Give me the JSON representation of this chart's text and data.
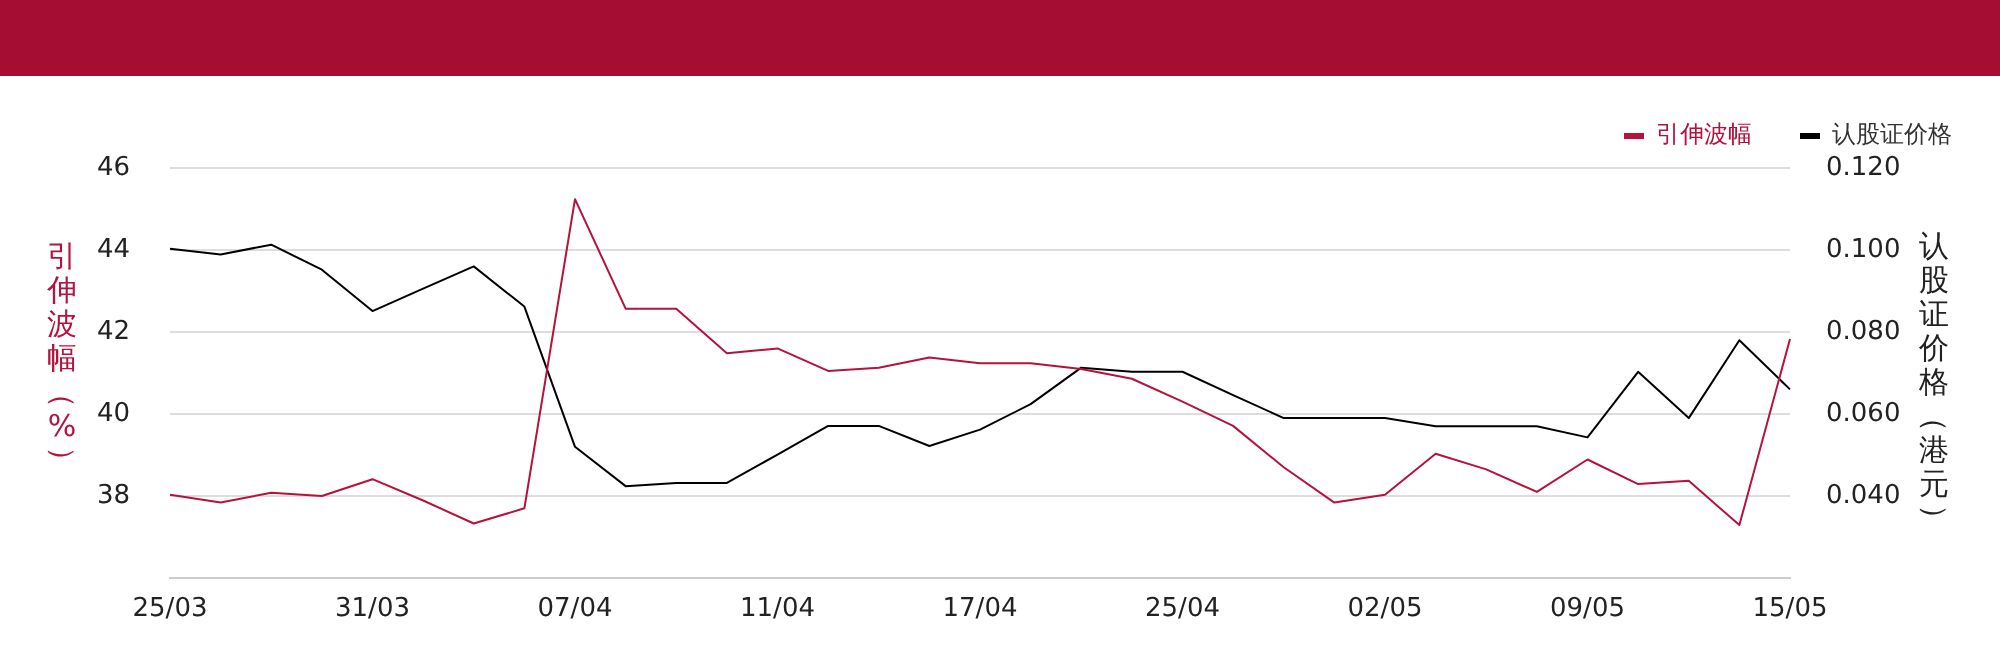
{
  "chart_data": {
    "type": "line",
    "ylabel": "引伸波幅（%）",
    "y2label": "认股证价格（港元）",
    "categories": [
      "25/03",
      null,
      null,
      null,
      "31/03",
      null,
      null,
      null,
      "07/04",
      null,
      null,
      null,
      "11/04",
      null,
      null,
      null,
      "17/04",
      null,
      null,
      null,
      "25/04",
      null,
      null,
      null,
      "02/05",
      null,
      null,
      null,
      "09/05",
      null,
      null,
      null,
      "15/05"
    ],
    "series": [
      {
        "name": "引伸波幅",
        "color": "#b5123e",
        "values": [
          38.03,
          37.84,
          38.08,
          38.0,
          38.41,
          37.89,
          37.33,
          37.7,
          45.24,
          42.57,
          42.57,
          41.48,
          41.6,
          41.05,
          41.13,
          41.38,
          41.24,
          41.24,
          41.1,
          40.86,
          40.3,
          39.71,
          38.7,
          37.84,
          38.03,
          39.03,
          38.65,
          38.1,
          38.89,
          38.29,
          38.37,
          37.29,
          41.83
        ]
      },
      {
        "name": "认股证价格",
        "color": "#000000",
        "axis": "y2",
        "values": [
          0.1003,
          0.0989,
          0.1013,
          0.0952,
          0.0851,
          0.0906,
          0.096,
          0.0862,
          0.052,
          0.0424,
          0.0432,
          0.0432,
          0.0501,
          0.0571,
          0.0571,
          0.0522,
          0.0562,
          0.0624,
          0.0713,
          0.0703,
          0.0703,
          0.0646,
          0.059,
          0.059,
          0.059,
          0.057,
          0.057,
          0.057,
          0.0543,
          0.0703,
          0.059,
          0.078,
          0.066
        ]
      }
    ],
    "ylim": [
      36,
      46
    ],
    "yticks": [
      38,
      40,
      42,
      44,
      46
    ],
    "y2lim": [
      0.02,
      0.12
    ],
    "y2ticks": [
      {
        "value": 0.04,
        "label": "0.040"
      },
      {
        "value": 0.06,
        "label": "0.060"
      },
      {
        "value": 0.08,
        "label": "0.080"
      },
      {
        "value": 0.1,
        "label": "0.100"
      },
      {
        "value": 0.12,
        "label": "0.120"
      }
    ],
    "grid": "y",
    "legend": "top right",
    "marker": "none",
    "line_style": "solid"
  }
}
